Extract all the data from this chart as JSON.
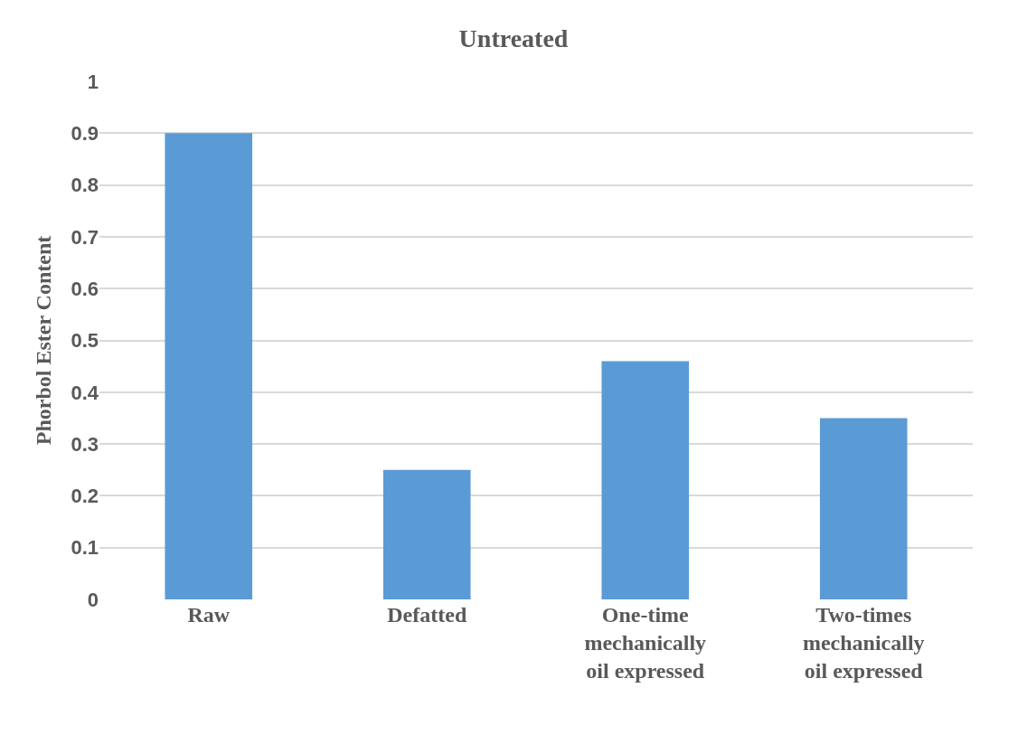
{
  "chart_data": {
    "type": "bar",
    "title": "Untreated",
    "ylabel": "Phorbol Ester Content",
    "categories": [
      "Raw",
      "Defatted",
      "One-time mechanically oil expressed",
      "Two-times mechanically oil expressed"
    ],
    "values": [
      0.9,
      0.25,
      0.46,
      0.35
    ],
    "color": "#5b9bd5",
    "ylim": [
      0,
      1
    ],
    "yticks": [
      0,
      0.1,
      0.2,
      0.3,
      0.4,
      0.5,
      0.6,
      0.7,
      0.8,
      0.9,
      1
    ],
    "grid": "y"
  }
}
